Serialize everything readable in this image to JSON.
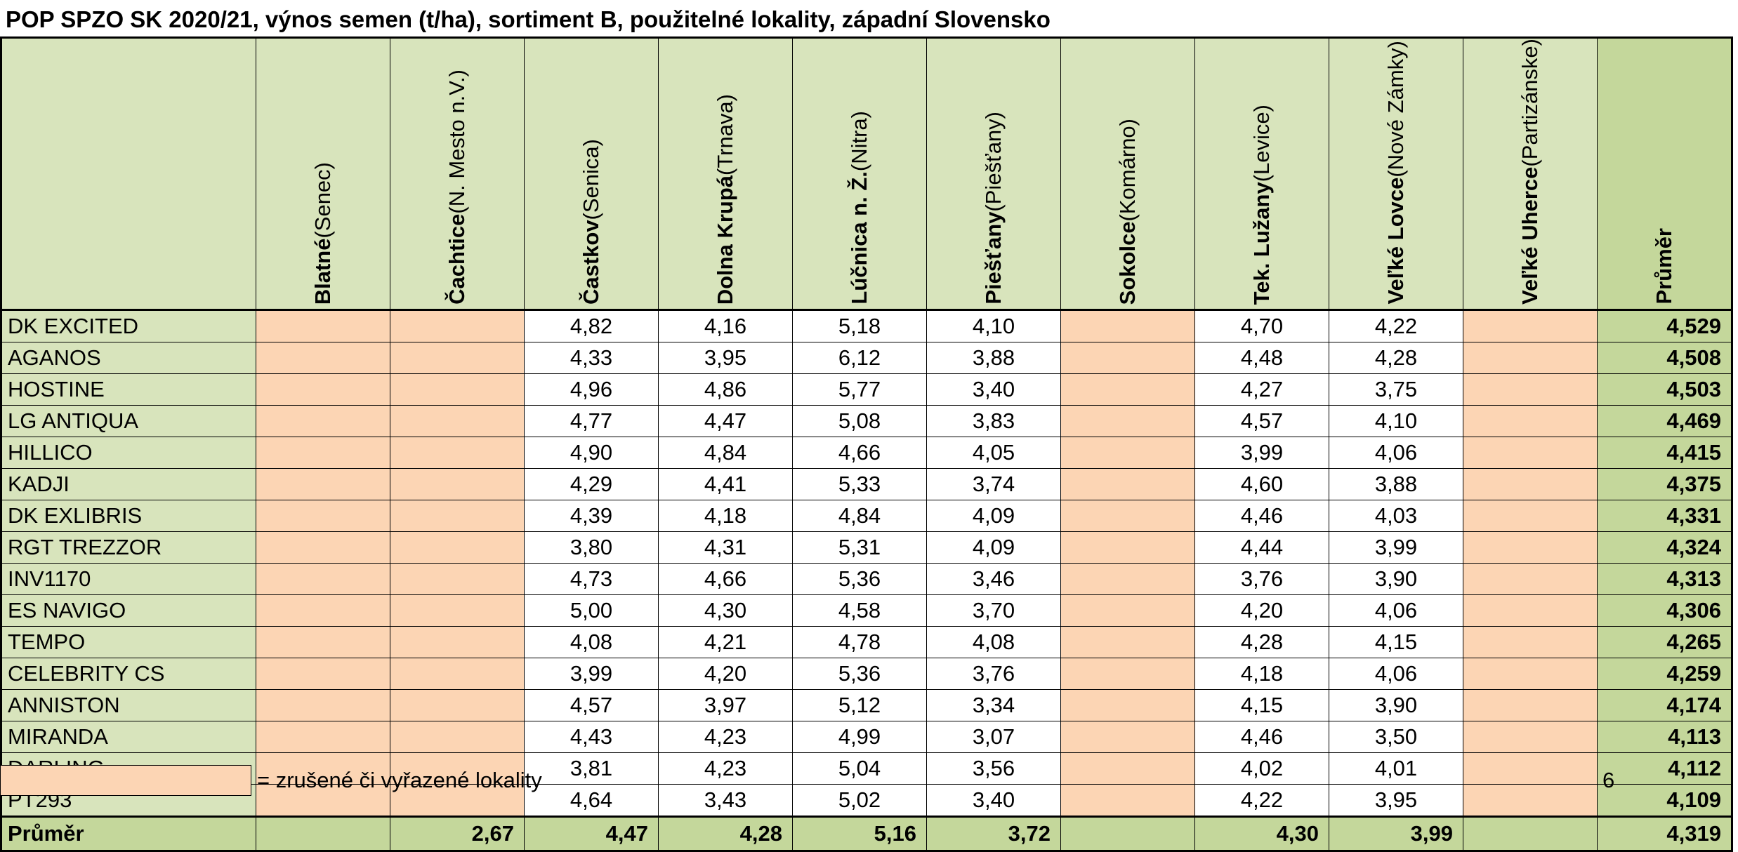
{
  "title": "POP SPZO SK 2020/21, výnos semen (t/ha), sortiment B, použitelné lokality, západní Slovensko",
  "columns": [
    {
      "name": "Blatné",
      "sub": "(Senec)",
      "cancelled": true
    },
    {
      "name": "Čachtice",
      "sub": "(N. Mesto n.V.)",
      "cancelled": true
    },
    {
      "name": "Častkov",
      "sub": "(Senica)",
      "cancelled": false
    },
    {
      "name": "Dolna Krupá",
      "sub": "(Trnava)",
      "cancelled": false
    },
    {
      "name": "Lúčnica n. Ž.",
      "sub": "(Nitra)",
      "cancelled": false
    },
    {
      "name": "Piešťany",
      "sub": "(Piešťany)",
      "cancelled": false
    },
    {
      "name": "Sokolce",
      "sub": "(Komárno)",
      "cancelled": true
    },
    {
      "name": "Tek. Lužany",
      "sub": "(Levice)",
      "cancelled": false
    },
    {
      "name": "Veľké Lovce",
      "sub": "(Nové Zámky)",
      "cancelled": false
    },
    {
      "name": "Veľké Uherce",
      "sub": "(Partizánske)",
      "cancelled": true
    }
  ],
  "avg_header": "Průměr",
  "rows": [
    {
      "name": "DK EXCITED",
      "values": [
        "",
        "",
        "4,82",
        "4,16",
        "5,18",
        "4,10",
        "",
        "4,70",
        "4,22",
        ""
      ],
      "avg": "4,529"
    },
    {
      "name": "AGANOS",
      "values": [
        "",
        "",
        "4,33",
        "3,95",
        "6,12",
        "3,88",
        "",
        "4,48",
        "4,28",
        ""
      ],
      "avg": "4,508"
    },
    {
      "name": "HOSTINE",
      "values": [
        "",
        "",
        "4,96",
        "4,86",
        "5,77",
        "3,40",
        "",
        "4,27",
        "3,75",
        ""
      ],
      "avg": "4,503"
    },
    {
      "name": "LG ANTIQUA",
      "values": [
        "",
        "",
        "4,77",
        "4,47",
        "5,08",
        "3,83",
        "",
        "4,57",
        "4,10",
        ""
      ],
      "avg": "4,469"
    },
    {
      "name": "HILLICO",
      "values": [
        "",
        "",
        "4,90",
        "4,84",
        "4,66",
        "4,05",
        "",
        "3,99",
        "4,06",
        ""
      ],
      "avg": "4,415"
    },
    {
      "name": "KADJI",
      "values": [
        "",
        "",
        "4,29",
        "4,41",
        "5,33",
        "3,74",
        "",
        "4,60",
        "3,88",
        ""
      ],
      "avg": "4,375"
    },
    {
      "name": "DK EXLIBRIS",
      "values": [
        "",
        "",
        "4,39",
        "4,18",
        "4,84",
        "4,09",
        "",
        "4,46",
        "4,03",
        ""
      ],
      "avg": "4,331"
    },
    {
      "name": "RGT TREZZOR",
      "values": [
        "",
        "",
        "3,80",
        "4,31",
        "5,31",
        "4,09",
        "",
        "4,44",
        "3,99",
        ""
      ],
      "avg": "4,324"
    },
    {
      "name": "INV1170",
      "values": [
        "",
        "",
        "4,73",
        "4,66",
        "5,36",
        "3,46",
        "",
        "3,76",
        "3,90",
        ""
      ],
      "avg": "4,313"
    },
    {
      "name": "ES NAVIGO",
      "values": [
        "",
        "",
        "5,00",
        "4,30",
        "4,58",
        "3,70",
        "",
        "4,20",
        "4,06",
        ""
      ],
      "avg": "4,306"
    },
    {
      "name": "TEMPO",
      "values": [
        "",
        "",
        "4,08",
        "4,21",
        "4,78",
        "4,08",
        "",
        "4,28",
        "4,15",
        ""
      ],
      "avg": "4,265"
    },
    {
      "name": "CELEBRITY CS",
      "values": [
        "",
        "",
        "3,99",
        "4,20",
        "5,36",
        "3,76",
        "",
        "4,18",
        "4,06",
        ""
      ],
      "avg": "4,259"
    },
    {
      "name": "ANNISTON",
      "values": [
        "",
        "",
        "4,57",
        "3,97",
        "5,12",
        "3,34",
        "",
        "4,15",
        "3,90",
        ""
      ],
      "avg": "4,174"
    },
    {
      "name": "MIRANDA",
      "values": [
        "",
        "",
        "4,43",
        "4,23",
        "4,99",
        "3,07",
        "",
        "4,46",
        "3,50",
        ""
      ],
      "avg": "4,113"
    },
    {
      "name": "DARLING",
      "values": [
        "",
        "",
        "3,81",
        "4,23",
        "5,04",
        "3,56",
        "",
        "4,02",
        "4,01",
        ""
      ],
      "avg": "4,112"
    },
    {
      "name": "PT293",
      "values": [
        "",
        "",
        "4,64",
        "3,43",
        "5,02",
        "3,40",
        "",
        "4,22",
        "3,95",
        ""
      ],
      "avg": "4,109"
    }
  ],
  "total": {
    "label": "Průměr",
    "values": [
      "",
      "2,67",
      "4,47",
      "4,28",
      "5,16",
      "3,72",
      "",
      "4,30",
      "3,99",
      ""
    ],
    "avg": "4,319"
  },
  "legend": {
    "text": "= zrušené či vyřazené lokality",
    "cancel_color": "#fcd5b4"
  },
  "page_number": "6",
  "colors": {
    "header_green": "#d8e4bc",
    "avg_green": "#c4d79b",
    "cancelled": "#fcd5b4"
  }
}
